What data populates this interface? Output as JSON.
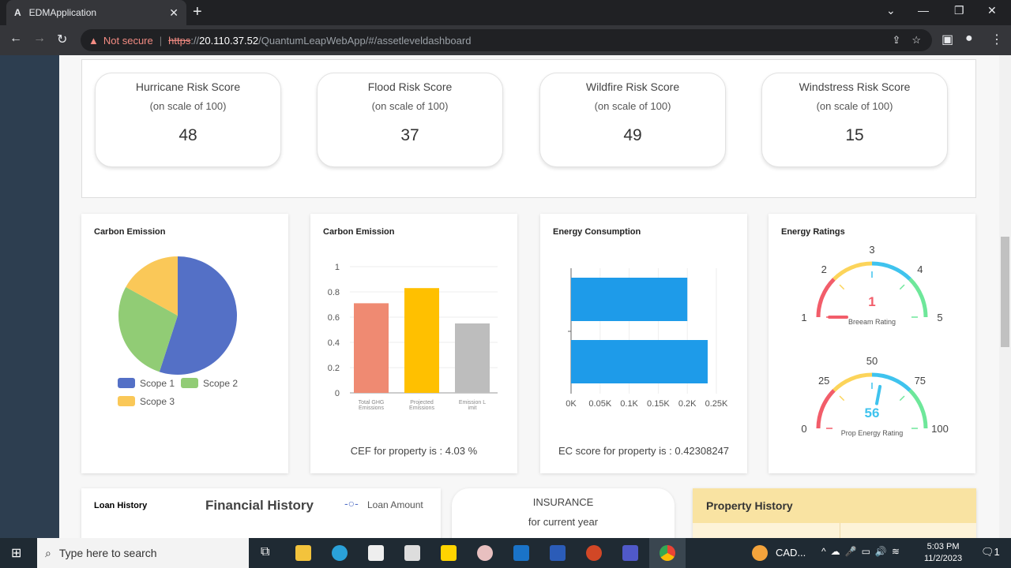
{
  "browser": {
    "tab_title": "EDMApplication",
    "not_secure": "Not secure",
    "url_scheme": "https",
    "url_host": "20.110.37.52",
    "url_path": "/QuantumLeapWebApp/#/assetleveldashboard"
  },
  "risk_scores": [
    {
      "title": "Hurricane Risk Score",
      "subtitle": "(on scale of 100)",
      "value": "48"
    },
    {
      "title": "Flood Risk Score",
      "subtitle": "(on scale of 100)",
      "value": "37"
    },
    {
      "title": "Wildfire Risk Score",
      "subtitle": "(on scale of 100)",
      "value": "49"
    },
    {
      "title": "Windstress Risk Score",
      "subtitle": "(on scale of 100)",
      "value": "15"
    }
  ],
  "cards": {
    "pie_title": "Carbon Emission",
    "bar_title": "Carbon Emission",
    "bar_footer": "CEF for property is : 4.03 %",
    "energy_title": "Energy Consumption",
    "energy_footer": "EC score for property is : 0.42308247",
    "ratings_title": "Energy Ratings"
  },
  "chart_data": [
    {
      "type": "pie",
      "series": [
        {
          "name": "Scope 1",
          "value": 55,
          "color": "#5470c6"
        },
        {
          "name": "Scope 2",
          "value": 28,
          "color": "#91cc75"
        },
        {
          "name": "Scope 3",
          "value": 17,
          "color": "#fac858"
        }
      ],
      "legend": "bottom"
    },
    {
      "type": "bar",
      "categories": [
        "Total GHG Emissions",
        "Projected Emissions",
        "Emission Limit"
      ],
      "category_labels": [
        [
          "Total GHG",
          "Emissions"
        ],
        [
          "Projected",
          "Emissions"
        ],
        [
          "Emission L",
          "imit"
        ]
      ],
      "values": [
        0.71,
        0.83,
        0.55
      ],
      "colors": [
        "#ef8a72",
        "#ffc000",
        "#bdbdbd"
      ],
      "ylim": [
        0,
        1
      ],
      "yticks": [
        "0",
        "0.2",
        "0.4",
        "0.6",
        "0.8",
        "1"
      ],
      "grid": true
    },
    {
      "type": "bar",
      "orientation": "horizontal",
      "values": [
        0.2,
        0.235
      ],
      "xlim": [
        0,
        0.25
      ],
      "xticks": [
        "0K",
        "0.05K",
        "0.1K",
        "0.15K",
        "0.2K",
        "0.25K"
      ],
      "color": "#1e9be9",
      "grid": true
    },
    {
      "type": "gauge",
      "label": "Breeam Rating",
      "value": 1,
      "min": 1,
      "max": 5,
      "ticks": [
        "1",
        "2",
        "3",
        "4",
        "5"
      ],
      "value_color": "#f25d6a"
    },
    {
      "type": "gauge",
      "label": "Prop Energy Rating",
      "value": 56,
      "min": 0,
      "max": 100,
      "ticks": [
        "0",
        "25",
        "50",
        "75",
        "100"
      ],
      "value_color": "#3fc3ee"
    }
  ],
  "bottom": {
    "loan_title": "Loan History",
    "financial_title": "Financial History",
    "legend": "Loan Amount",
    "insurance": "INSURANCE",
    "insurance_sub": "for current year",
    "property": "Property History"
  },
  "taskbar": {
    "search": "Type here to search",
    "tray_app": "CAD...",
    "time": "5:03 PM",
    "date": "11/2/2023",
    "notifications": "1"
  }
}
